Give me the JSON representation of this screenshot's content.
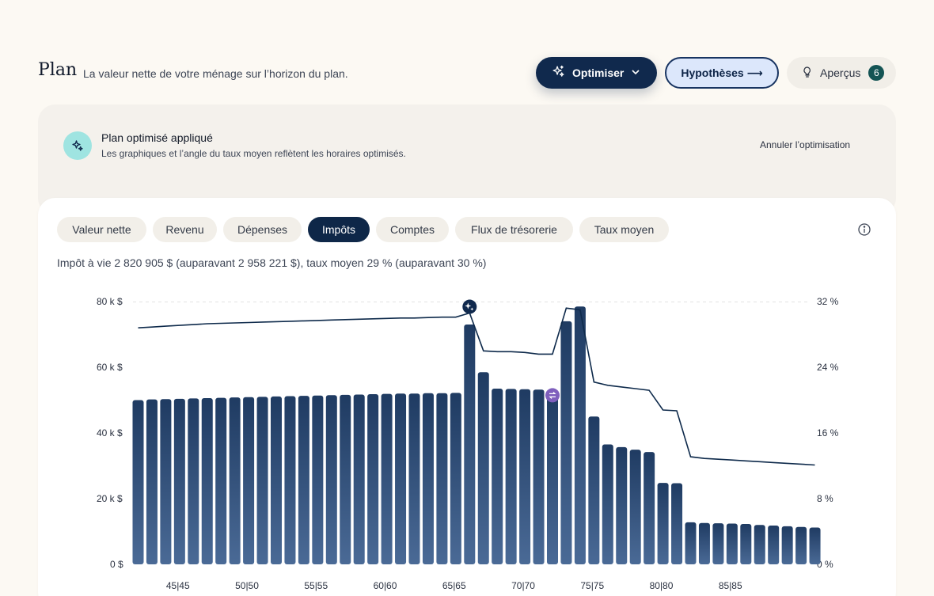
{
  "header": {
    "title": "Plan",
    "subtitle": "La valeur nette de votre ménage sur l’horizon du plan."
  },
  "actions": {
    "optimize_label": "Optimiser",
    "hypotheses_label": "Hypothèses ⟶",
    "insights_label": "Aperçus",
    "insights_count": "6"
  },
  "banner": {
    "title": "Plan optimisé appliqué",
    "text": "Les graphiques et l’angle du taux moyen reflètent les horaires optimisés.",
    "cancel_label": "Annuler l’optimisation"
  },
  "tabs": [
    {
      "label": "Valeur nette"
    },
    {
      "label": "Revenu"
    },
    {
      "label": "Dépenses"
    },
    {
      "label": "Impôts",
      "active": true
    },
    {
      "label": "Comptes"
    },
    {
      "label": "Flux de trésorerie"
    },
    {
      "label": "Taux moyen"
    }
  ],
  "summary": "Impôt à vie 2 820 905 $ (auparavant 2 958 221 $), taux moyen 29 % (auparavant 30 %)",
  "colors": {
    "bar": "#2b4a73",
    "line": "#0e2a4b",
    "accent_dark": "#10294d",
    "accent_purple": "#7f5fbd",
    "teal": "#145454"
  },
  "chart_data": {
    "type": "bar",
    "y_left_ticks": [
      "0 $",
      "20 k $",
      "40 k $",
      "60 k $",
      "80 k $"
    ],
    "y_right_ticks": [
      "0 %",
      "8 %",
      "16 %",
      "24 %",
      "32 %"
    ],
    "ylim_left": [
      0,
      80000
    ],
    "ylim_right": [
      0,
      32
    ],
    "x_ticks": [
      {
        "index": 3,
        "label": "45|45"
      },
      {
        "index": 8,
        "label": "50|50"
      },
      {
        "index": 13,
        "label": "55|55"
      },
      {
        "index": 18,
        "label": "60|60"
      },
      {
        "index": 23,
        "label": "65|65"
      },
      {
        "index": 28,
        "label": "70|70"
      },
      {
        "index": 33,
        "label": "75|75"
      },
      {
        "index": 38,
        "label": "80|80"
      },
      {
        "index": 43,
        "label": "85|85"
      }
    ],
    "series": [
      {
        "kind": "bar",
        "values": [
          50000,
          50200,
          50300,
          50400,
          50500,
          50600,
          50700,
          50800,
          50900,
          51000,
          51100,
          51200,
          51300,
          51400,
          51500,
          51600,
          51700,
          51800,
          51900,
          52000,
          52000,
          52100,
          52100,
          52200,
          73000,
          58500,
          53500,
          53400,
          53300,
          53200,
          53100,
          74000,
          78500,
          45000,
          36500,
          35700,
          34900,
          34200,
          24800,
          24700,
          12800,
          12600,
          12500,
          12400,
          12300,
          12000,
          11800,
          11600,
          11400,
          11200
        ],
        "unit": "$"
      },
      {
        "kind": "line",
        "axis": "right",
        "values": [
          28.8,
          28.9,
          29.0,
          29.1,
          29.2,
          29.3,
          29.35,
          29.4,
          29.45,
          29.5,
          29.55,
          29.6,
          29.65,
          29.7,
          29.75,
          29.8,
          29.85,
          29.9,
          29.95,
          30.0,
          30.0,
          30.05,
          30.1,
          30.1,
          30.6,
          26.0,
          25.9,
          25.9,
          25.8,
          25.6,
          25.6,
          31.2,
          31.0,
          22.2,
          21.8,
          21.6,
          21.4,
          21.2,
          18.8,
          18.7,
          13.1,
          12.9,
          12.8,
          12.7,
          12.6,
          12.5,
          12.4,
          12.3,
          12.2,
          12.1
        ],
        "unit": "%"
      }
    ],
    "markers": [
      {
        "index": 24,
        "type": "optimize-marker",
        "icon": "sparkle-icon"
      },
      {
        "index": 30,
        "type": "swap-marker",
        "icon": "swap-icon"
      }
    ],
    "grid": "top-dashed"
  }
}
